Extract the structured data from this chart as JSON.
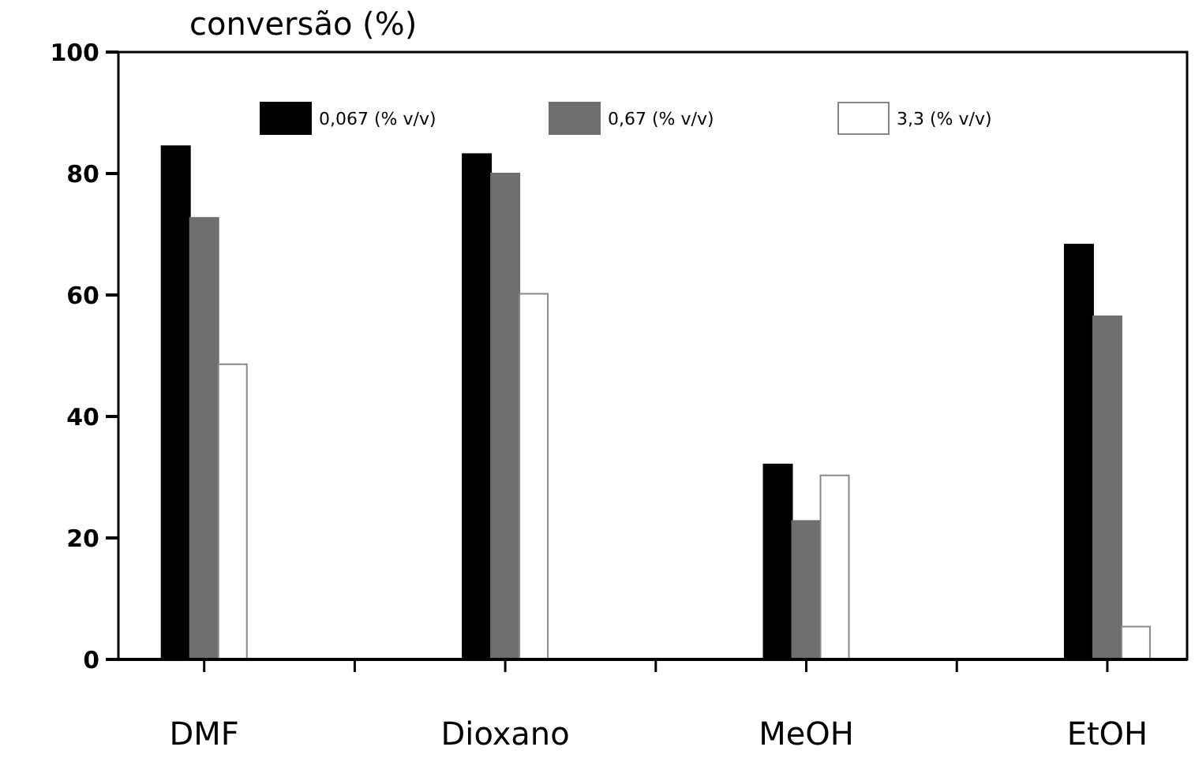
{
  "chart_data": {
    "type": "bar",
    "ylabel": "conversão (%)",
    "categories": [
      "DMF",
      "Dioxano",
      "MeOH",
      "EtOH"
    ],
    "series": [
      {
        "name": "0,067 (% v/v)",
        "color": "#000000",
        "values": [
          84.5,
          83.2,
          32.1,
          68.3
        ]
      },
      {
        "name": "0,67 (% v/v)",
        "color": "#6e6e6e",
        "values": [
          72.7,
          80.0,
          22.8,
          56.5
        ]
      },
      {
        "name": "3,3 (% v/v)",
        "color": "#ffffff",
        "values": [
          48.6,
          60.2,
          30.3,
          5.4
        ]
      }
    ],
    "ylim": [
      0,
      100
    ],
    "yticks": [
      0,
      20,
      40,
      60,
      80,
      100
    ],
    "grid": false,
    "legend": "top"
  }
}
